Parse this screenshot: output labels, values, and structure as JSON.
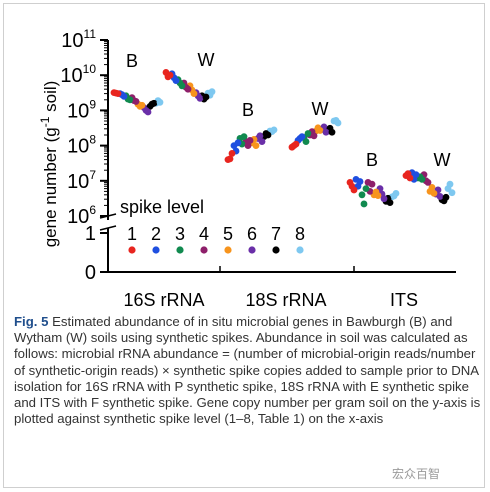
{
  "chart_data": {
    "type": "scatter",
    "ylabel": "gene number (g",
    "ylabel_sup": "-1",
    "ylabel_tail": " soil)",
    "y_scale": "log (broken axis)",
    "y_ticks_log": [
      {
        "base": "10",
        "exp": "6",
        "value": 1000000
      },
      {
        "base": "10",
        "exp": "7",
        "value": 10000000
      },
      {
        "base": "10",
        "exp": "8",
        "value": 100000000
      },
      {
        "base": "10",
        "exp": "9",
        "value": 1000000000
      },
      {
        "base": "10",
        "exp": "10",
        "value": 10000000000
      },
      {
        "base": "10",
        "exp": "11",
        "value": 100000000000
      }
    ],
    "y_ticks_linear": [
      "1",
      "0"
    ],
    "categories": [
      "16S rRNA",
      "18S rRNA",
      "ITS"
    ],
    "group_letters": {
      "B": "B",
      "W": "W"
    },
    "legend": {
      "title": "spike level",
      "items": [
        {
          "label": "1",
          "color": "#e8251f"
        },
        {
          "label": "2",
          "color": "#1f4fe0"
        },
        {
          "label": "3",
          "color": "#118a4f"
        },
        {
          "label": "4",
          "color": "#8e1f6a"
        },
        {
          "label": "5",
          "color": "#f7941d"
        },
        {
          "label": "6",
          "color": "#6a2fa8"
        },
        {
          "label": "7",
          "color": "#000000"
        },
        {
          "label": "8",
          "color": "#7ec8f0"
        }
      ]
    },
    "series": [
      {
        "category": "16S rRNA",
        "soil": "B",
        "values": [
          3200000000.0,
          3000000000.0,
          2600000000.0,
          2300000000.0,
          1500000000.0,
          1200000000.0,
          1300000000.0,
          1600000000.0,
          3100000000.0,
          2800000000.0,
          2100000000.0,
          1900000000.0,
          1300000000.0,
          1000000000.0,
          1500000000.0,
          1900000000.0,
          3000000000.0,
          2500000000.0,
          2000000000.0,
          1800000000.0,
          1400000000.0,
          900000000.0,
          1600000000.0,
          1700000000.0
        ]
      },
      {
        "category": "16S rRNA",
        "soil": "W",
        "values": [
          12000000000.0,
          11000000000.0,
          7500000000.0,
          6000000000.0,
          5000000000.0,
          3200000000.0,
          2600000000.0,
          3100000000.0,
          9000000000.0,
          8500000000.0,
          6000000000.0,
          4500000000.0,
          3800000000.0,
          2600000000.0,
          2100000000.0,
          2700000000.0,
          10000000000.0,
          7000000000.0,
          5000000000.0,
          4000000000.0,
          3000000000.0,
          2200000000.0,
          2400000000.0,
          3400000000.0
        ]
      },
      {
        "category": "18S rRNA",
        "soil": "B",
        "values": [
          40000000.0,
          100000000.0,
          160000000.0,
          130000000.0,
          120000000.0,
          160000000.0,
          180000000.0,
          260000000.0,
          42000000.0,
          70000000.0,
          110000000.0,
          100000000.0,
          150000000.0,
          190000000.0,
          220000000.0,
          250000000.0,
          60000000.0,
          120000000.0,
          180000000.0,
          140000000.0,
          100000000.0,
          130000000.0,
          200000000.0,
          280000000.0
        ]
      },
      {
        "category": "18S rRNA",
        "soil": "W",
        "values": [
          90000000.0,
          140000000.0,
          170000000.0,
          200000000.0,
          260000000.0,
          290000000.0,
          260000000.0,
          500000000.0,
          100000000.0,
          160000000.0,
          130000000.0,
          250000000.0,
          320000000.0,
          340000000.0,
          310000000.0,
          520000000.0,
          110000000.0,
          180000000.0,
          220000000.0,
          190000000.0,
          270000000.0,
          240000000.0,
          240000000.0,
          440000000.0
        ]
      },
      {
        "category": "ITS",
        "soil": "B",
        "values": [
          9000000.0,
          11000000.0,
          4000000.0,
          9000000.0,
          4000000.0,
          6000000.0,
          2600000.0,
          3500000.0,
          7000000.0,
          7000000.0,
          2200000.0,
          5000000.0,
          4800000.0,
          4200000.0,
          3200000.0,
          3700000.0,
          5500000.0,
          9500000.0,
          6000000.0,
          8000000.0,
          3800000.0,
          3100000.0,
          2400000.0,
          4400000.0
        ]
      },
      {
        "category": "ITS",
        "soil": "W",
        "values": [
          14000000.0,
          17000000.0,
          12000000.0,
          15000000.0,
          5000000.0,
          4200000.0,
          2900000.0,
          6000000.0,
          16000000.0,
          11000000.0,
          13000000.0,
          10000000.0,
          6500000.0,
          5500000.0,
          2700000.0,
          8000000.0,
          12000000.0,
          15000000.0,
          11000000.0,
          9000000.0,
          4400000.0,
          3600000.0,
          3400000.0,
          4600000.0
        ]
      }
    ],
    "grid": false,
    "legend_placement": "bottom-left"
  },
  "caption": {
    "label": "Fig. 5",
    "text": " Estimated abundance of in situ microbial genes in Bawburgh (B) and Wytham (W) soils using synthetic spikes. Abundance in soil was calculated as follows: microbial rRNA abundance = (number of microbial-origin reads/number of synthetic-origin reads) × synthetic spike copies added to sample prior to DNA isolation for 16S rRNA with P synthetic spike, 18S rRNA with E synthetic spike and ITS with F synthetic spike. Gene copy number per gram soil on the y-axis is plotted against synthetic spike level (1–8, Table 1) on the x-axis"
  },
  "watermark": "宏众百智"
}
